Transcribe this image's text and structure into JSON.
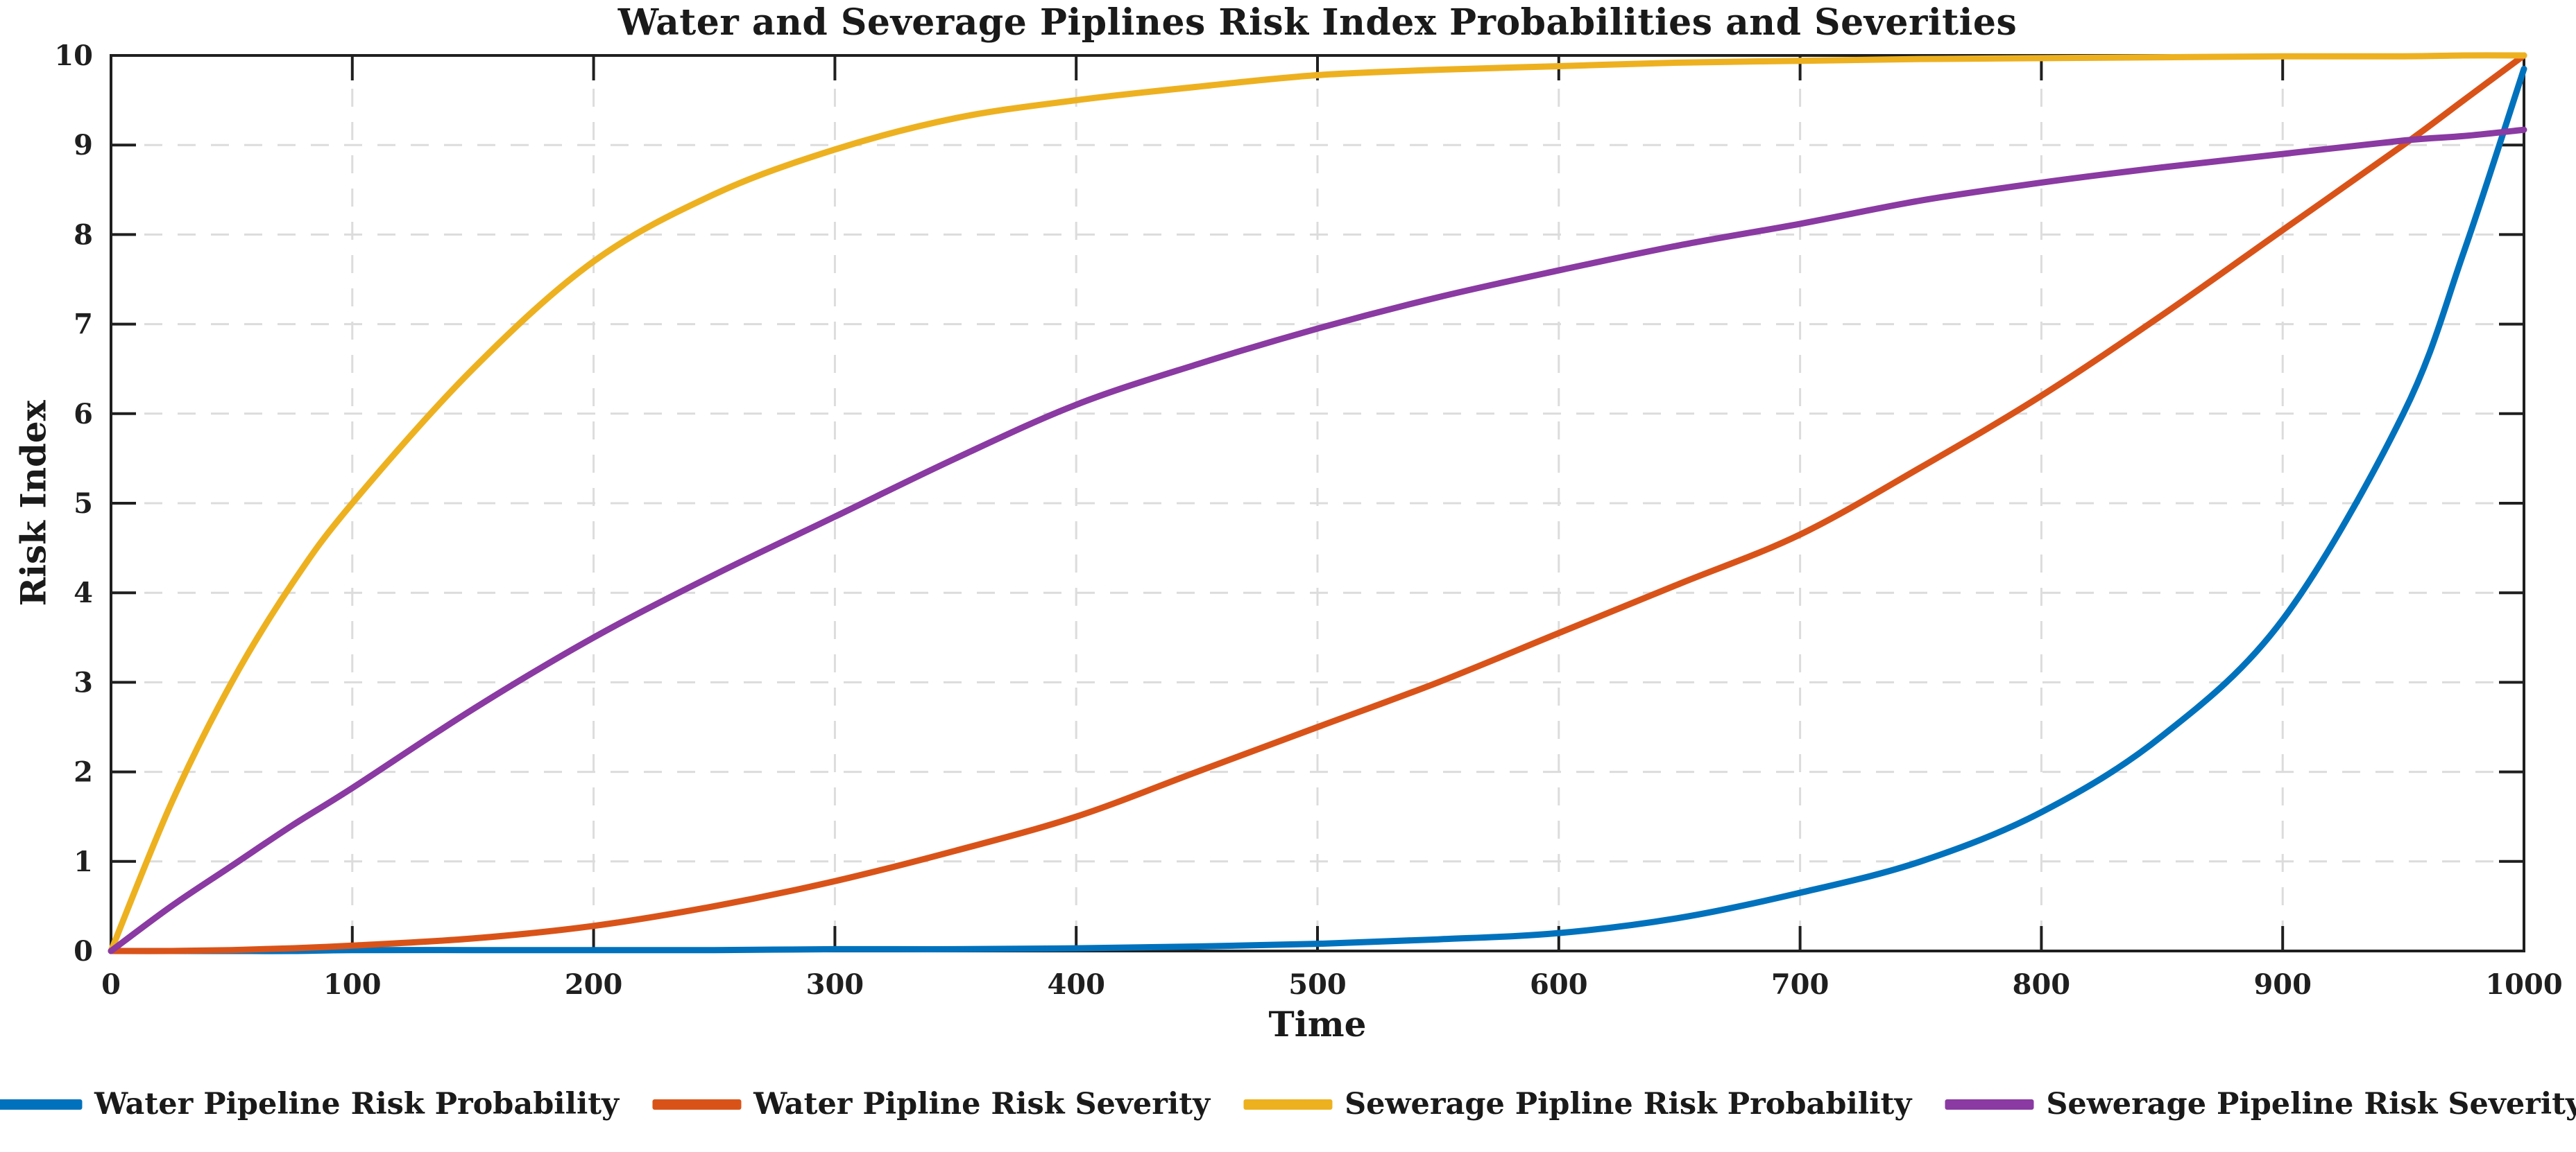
{
  "title": "Water and Severage Piplines Risk Index Probabilities and Severities",
  "axes": {
    "xlabel": "Time",
    "ylabel": "Risk Index"
  },
  "legend": {
    "entries": [
      {
        "label": "Water Pipeline Risk Probability",
        "color": "#0072BD"
      },
      {
        "label": "Water Pipline Risk Severity",
        "color": "#D95319"
      },
      {
        "label": "Sewerage Pipline Risk Probability",
        "color": "#EDB120"
      },
      {
        "label": "Sewerage Pipeline Risk Severity",
        "color": "#8A3AA2"
      }
    ]
  },
  "chart_data": {
    "type": "line",
    "title": "Water and Severage Piplines Risk Index Probabilities and Severities",
    "xlabel": "Time",
    "ylabel": "Risk Index",
    "xlim": [
      0,
      1000
    ],
    "ylim": [
      0,
      10
    ],
    "x_ticks": [
      0,
      100,
      200,
      300,
      400,
      500,
      600,
      700,
      800,
      900,
      1000
    ],
    "y_ticks": [
      0,
      1,
      2,
      3,
      4,
      5,
      6,
      7,
      8,
      9,
      10
    ],
    "grid": "dashed-both-axes",
    "legend_position": "bottom",
    "frame": "box",
    "x": [
      0,
      25,
      50,
      75,
      100,
      150,
      200,
      250,
      300,
      350,
      400,
      450,
      500,
      550,
      600,
      650,
      700,
      750,
      800,
      850,
      900,
      950,
      975,
      1000
    ],
    "series": [
      {
        "name": "Water Pipeline Risk Probability",
        "color": "#0072BD",
        "values": [
          0,
          0,
          0,
          0,
          0.01,
          0.01,
          0.01,
          0.01,
          0.02,
          0.02,
          0.03,
          0.05,
          0.08,
          0.13,
          0.2,
          0.37,
          0.65,
          1.0,
          1.55,
          2.4,
          3.7,
          6.0,
          7.8,
          9.85
        ]
      },
      {
        "name": "Water Pipline Risk Severity",
        "color": "#D95319",
        "values": [
          0,
          0,
          0.01,
          0.03,
          0.06,
          0.14,
          0.28,
          0.5,
          0.78,
          1.12,
          1.5,
          2.0,
          2.5,
          3.0,
          3.55,
          4.1,
          4.65,
          5.4,
          6.2,
          7.1,
          8.05,
          9.0,
          9.5,
          10
        ]
      },
      {
        "name": "Sewerage Pipline Risk Probability",
        "color": "#EDB120",
        "values": [
          0,
          1.65,
          3.0,
          4.1,
          5.0,
          6.5,
          7.7,
          8.45,
          8.95,
          9.3,
          9.5,
          9.65,
          9.78,
          9.84,
          9.88,
          9.92,
          9.94,
          9.96,
          9.97,
          9.98,
          9.99,
          9.99,
          10,
          10
        ]
      },
      {
        "name": "Sewerage Pipeline Risk Severity",
        "color": "#8A3AA2",
        "values": [
          0,
          0.5,
          0.95,
          1.4,
          1.82,
          2.7,
          3.5,
          4.2,
          4.85,
          5.5,
          6.1,
          6.55,
          6.95,
          7.3,
          7.6,
          7.88,
          8.12,
          8.38,
          8.58,
          8.75,
          8.9,
          9.05,
          9.1,
          9.17
        ]
      }
    ],
    "style": {
      "line_width": 9,
      "frame_color": "#1f1f1f",
      "grid_color": "#dcdcdc",
      "tick_color": "#1f1f1f",
      "tick_label_size": 40
    }
  }
}
